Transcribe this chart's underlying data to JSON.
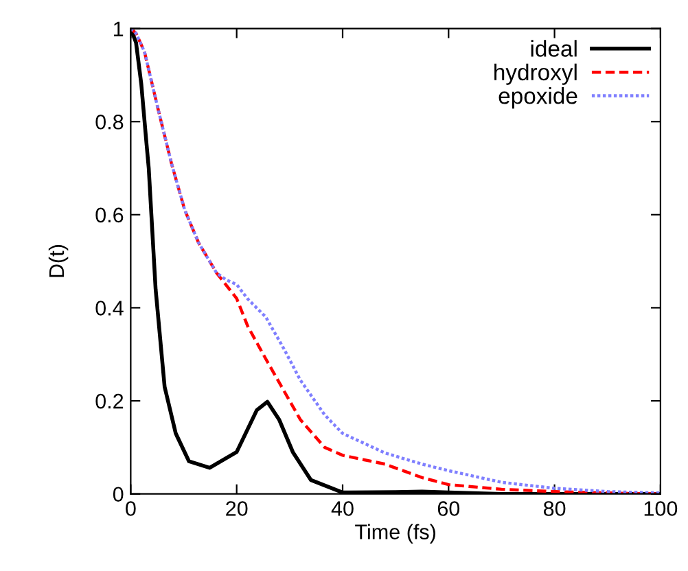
{
  "chart_data": {
    "type": "line",
    "xlabel": "Time (fs)",
    "ylabel": "D(t)",
    "xlim": [
      0,
      100
    ],
    "ylim": [
      0,
      1
    ],
    "xticks": [
      0,
      20,
      40,
      60,
      80,
      100
    ],
    "yticks": [
      0,
      0.2,
      0.4,
      0.6,
      0.8,
      1
    ],
    "legend": "top right",
    "grid": false,
    "series": [
      {
        "name": "ideal",
        "color": "#000000",
        "line_style": "solid",
        "x": [
          0,
          1,
          2,
          3,
          3.4,
          4.7,
          6.4,
          8.5,
          11,
          14.9,
          20,
          23.8,
          25.8,
          28,
          30.6,
          34,
          40,
          50,
          55,
          60,
          70,
          80,
          100
        ],
        "values": [
          1,
          0.97,
          0.88,
          0.75,
          0.7,
          0.44,
          0.23,
          0.13,
          0.07,
          0.056,
          0.09,
          0.18,
          0.198,
          0.16,
          0.09,
          0.03,
          0.003,
          0.004,
          0.005,
          0.003,
          0,
          0,
          0
        ]
      },
      {
        "name": "hydroxyl",
        "color": "#ff0000",
        "line_style": "dashed",
        "x": [
          0,
          1,
          2.6,
          5.1,
          7.7,
          10.2,
          12.8,
          16.2,
          20,
          22.1,
          25.5,
          29,
          32,
          36.6,
          40,
          48,
          55,
          60,
          70,
          80,
          90,
          100
        ],
        "values": [
          1,
          0.99,
          0.95,
          0.83,
          0.71,
          0.61,
          0.54,
          0.475,
          0.42,
          0.36,
          0.29,
          0.22,
          0.16,
          0.1,
          0.083,
          0.064,
          0.035,
          0.02,
          0.01,
          0.005,
          0.002,
          0
        ]
      },
      {
        "name": "epoxide",
        "color": "#7f7fff",
        "line_style": "dotted",
        "x": [
          0,
          1,
          2.6,
          5.1,
          7.7,
          10.2,
          12.8,
          16.2,
          18,
          20,
          22,
          25.5,
          29,
          32,
          36.6,
          40,
          48,
          55,
          60,
          70,
          80,
          90,
          100
        ],
        "values": [
          1,
          0.99,
          0.95,
          0.83,
          0.71,
          0.61,
          0.54,
          0.475,
          0.46,
          0.45,
          0.42,
          0.38,
          0.31,
          0.245,
          0.17,
          0.13,
          0.088,
          0.064,
          0.05,
          0.025,
          0.012,
          0.005,
          0.002
        ]
      }
    ]
  }
}
